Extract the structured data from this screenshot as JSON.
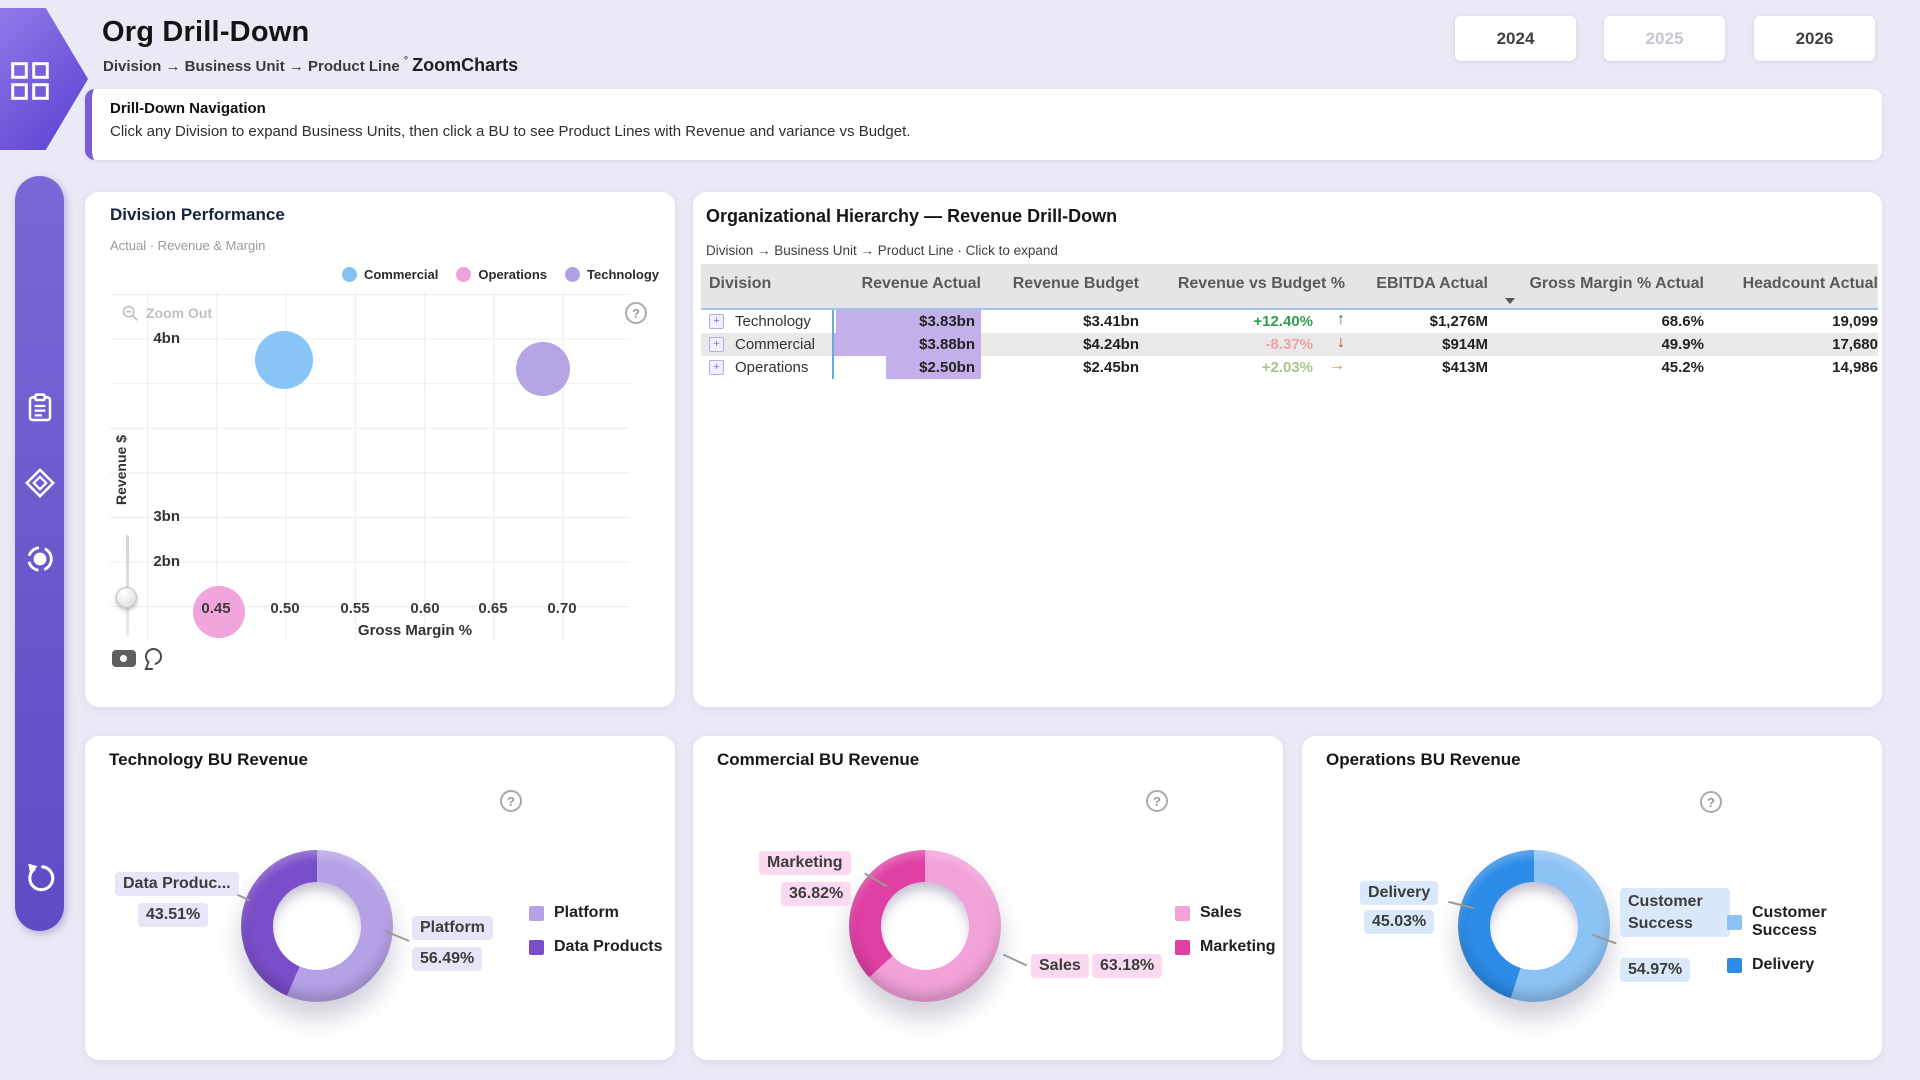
{
  "ui": {
    "help_symbol": "?",
    "expand_symbol": "+"
  },
  "header": {
    "title": "Org Drill-Down",
    "breadcrumb": "Division → Business Unit → Product Line",
    "separator": "°",
    "brand": "ZoomCharts",
    "year_buttons": [
      {
        "label": "2024",
        "enabled": true
      },
      {
        "label": "2025",
        "enabled": false
      },
      {
        "label": "2026",
        "enabled": true
      }
    ]
  },
  "banner": {
    "title": "Drill-Down Navigation",
    "description": "Click any Division to expand Business Units, then click a BU to see Product Lines with Revenue and variance vs Budget."
  },
  "sidebar": {
    "icons": [
      "clipboard-icon",
      "diamond-icon",
      "donut-icon",
      "reset-icon"
    ]
  },
  "hierarchy": {
    "title": "Organizational Hierarchy — Revenue Drill-Down",
    "subtitle": "Division → Business Unit → Product Line · Click to expand",
    "columns": [
      "Division",
      "Revenue Actual",
      "Revenue Budget",
      "Revenue vs Budget %",
      "EBITDA Actual",
      "Gross Margin % Actual",
      "Headcount Actual"
    ],
    "sorted_column": "Gross Margin % Actual",
    "bar_color": "#c3b0ea",
    "max_revenue_value": 3.88,
    "rows": [
      {
        "division": "Technology",
        "revenue_actual": "$3.83bn",
        "revenue_actual_value": 3.83,
        "revenue_budget": "$3.41bn",
        "variance": "+12.40%",
        "variance_color": "#2e9e4c",
        "arrow": "↑",
        "arrow_color": "#1b7d35",
        "ebitda": "$1,276M",
        "gross_margin": "68.6%",
        "headcount": "19,099"
      },
      {
        "division": "Commercial",
        "revenue_actual": "$3.88bn",
        "revenue_actual_value": 3.88,
        "revenue_budget": "$4.24bn",
        "variance": "-8.37%",
        "variance_color": "#f0a4a4",
        "arrow": "↓",
        "arrow_color": "#c2382a",
        "ebitda": "$914M",
        "gross_margin": "49.9%",
        "headcount": "17,680"
      },
      {
        "division": "Operations",
        "revenue_actual": "$2.50bn",
        "revenue_actual_value": 2.5,
        "revenue_budget": "$2.45bn",
        "variance": "+2.03%",
        "variance_color": "#a8c48e",
        "arrow": "→",
        "arrow_color": "#d98f23",
        "ebitda": "$413M",
        "gross_margin": "45.2%",
        "headcount": "14,986"
      }
    ]
  },
  "chart_data": [
    {
      "type": "scatter",
      "title": "Division Performance",
      "subtitle": "Actual · Revenue & Margin",
      "xlabel": "Gross Margin %",
      "ylabel": "Revenue $",
      "x_ticks": [
        "0.45",
        "0.50",
        "0.55",
        "0.60",
        "0.65",
        "0.70"
      ],
      "y_ticks": [
        "4bn",
        "3bn",
        "2bn"
      ],
      "xlim": [
        0.42,
        0.73
      ],
      "grid": true,
      "legend_position": "top-right",
      "zoom_out_label": "Zoom Out",
      "series": [
        {
          "name": "Commercial",
          "color": "#82c2f5",
          "points": [
            {
              "x": 0.499,
              "y": 3.88,
              "r": 29
            }
          ]
        },
        {
          "name": "Operations",
          "color": "#f0a0da",
          "points": [
            {
              "x": 0.452,
              "y": 2.5,
              "r": 26
            }
          ]
        },
        {
          "name": "Technology",
          "color": "#b2a0e4",
          "points": [
            {
              "x": 0.686,
              "y": 3.83,
              "r": 27
            }
          ]
        }
      ]
    },
    {
      "type": "pie",
      "title": "Technology BU Revenue",
      "slices": [
        {
          "label": "Platform",
          "value_pct": 56.49,
          "display": "56.49%",
          "color": "#b5a1e6"
        },
        {
          "label": "Data Products",
          "value_pct": 43.51,
          "display": "43.51%",
          "color": "#7a4ec9"
        }
      ],
      "callout_left": {
        "label": "Data Produc...",
        "value": "43.51%"
      },
      "callout_right": {
        "label": "Platform",
        "value": "56.49%"
      }
    },
    {
      "type": "pie",
      "title": "Commercial BU Revenue",
      "slices": [
        {
          "label": "Sales",
          "value_pct": 63.18,
          "display": "63.18%",
          "color": "#f2a2d9"
        },
        {
          "label": "Marketing",
          "value_pct": 36.82,
          "display": "36.82%",
          "color": "#e03fa4"
        }
      ],
      "callout_left": {
        "label": "Marketing",
        "value": "36.82%"
      },
      "callout_right": {
        "label": "Sales",
        "value": "63.18%"
      }
    },
    {
      "type": "pie",
      "title": "Operations BU Revenue",
      "slices": [
        {
          "label": "Customer Success",
          "value_pct": 54.97,
          "display": "54.97%",
          "color": "#8cc3f5"
        },
        {
          "label": "Delivery",
          "value_pct": 45.03,
          "display": "45.03%",
          "color": "#2c8ce8"
        }
      ],
      "callout_left": {
        "label": "Delivery",
        "value": "45.03%"
      },
      "callout_right": {
        "label": "Customer Success",
        "value": "54.97%"
      }
    }
  ]
}
